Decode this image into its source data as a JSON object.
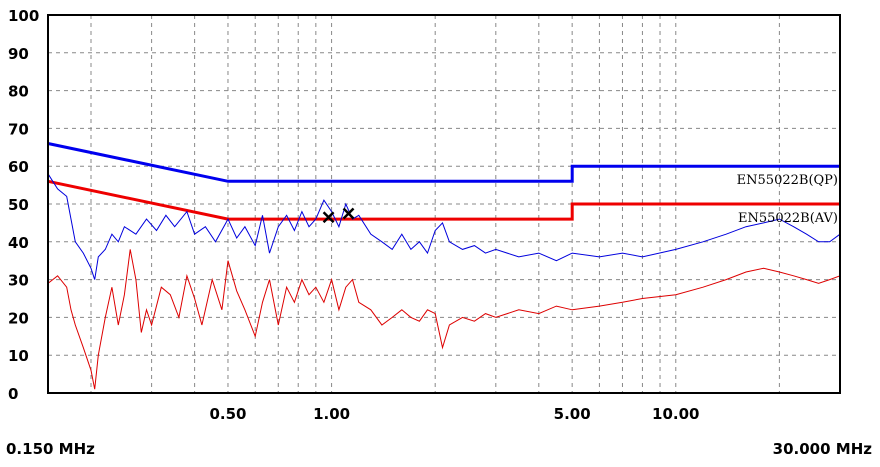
{
  "chart_data": {
    "type": "line",
    "x_scale": "log",
    "xlim": [
      0.15,
      30.0
    ],
    "ylim": [
      0,
      100
    ],
    "grid": true,
    "y_ticks": [
      "100",
      "90",
      "80",
      "70",
      "60",
      "50",
      "40",
      "30",
      "20",
      "10",
      "0"
    ],
    "x_ticks": [
      {
        "value": 0.5,
        "label": "0.50"
      },
      {
        "value": 1.0,
        "label": "1.00"
      },
      {
        "value": 5.0,
        "label": "5.00"
      },
      {
        "value": 10.0,
        "label": "10.00"
      }
    ],
    "x_min_label": "0.150 MHz",
    "x_max_label": "30.000 MHz",
    "limits": [
      {
        "name": "EN55022B(QP)",
        "color": "#0000ee",
        "points": [
          [
            0.15,
            66
          ],
          [
            0.5,
            56
          ],
          [
            5.0,
            56
          ],
          [
            5.0,
            60
          ],
          [
            30.0,
            60
          ]
        ]
      },
      {
        "name": "EN55022B(AV)",
        "color": "#ee0000",
        "points": [
          [
            0.15,
            56
          ],
          [
            0.5,
            46
          ],
          [
            5.0,
            46
          ],
          [
            5.0,
            50
          ],
          [
            30.0,
            50
          ]
        ]
      }
    ],
    "series": [
      {
        "color": "#0000dd",
        "points": [
          [
            0.15,
            58
          ],
          [
            0.16,
            54
          ],
          [
            0.17,
            52
          ],
          [
            0.175,
            46
          ],
          [
            0.18,
            40
          ],
          [
            0.19,
            37
          ],
          [
            0.2,
            33
          ],
          [
            0.205,
            30
          ],
          [
            0.21,
            36
          ],
          [
            0.22,
            38
          ],
          [
            0.23,
            42
          ],
          [
            0.24,
            40
          ],
          [
            0.25,
            44
          ],
          [
            0.27,
            42
          ],
          [
            0.29,
            46
          ],
          [
            0.31,
            43
          ],
          [
            0.33,
            47
          ],
          [
            0.35,
            44
          ],
          [
            0.38,
            48
          ],
          [
            0.4,
            42
          ],
          [
            0.43,
            44
          ],
          [
            0.46,
            40
          ],
          [
            0.5,
            46
          ],
          [
            0.53,
            41
          ],
          [
            0.56,
            44
          ],
          [
            0.6,
            39
          ],
          [
            0.63,
            47
          ],
          [
            0.66,
            37
          ],
          [
            0.7,
            44
          ],
          [
            0.74,
            47
          ],
          [
            0.78,
            43
          ],
          [
            0.82,
            48
          ],
          [
            0.86,
            44
          ],
          [
            0.9,
            46
          ],
          [
            0.95,
            51
          ],
          [
            1.0,
            48
          ],
          [
            1.05,
            44
          ],
          [
            1.1,
            50
          ],
          [
            1.15,
            46
          ],
          [
            1.2,
            47
          ],
          [
            1.3,
            42
          ],
          [
            1.4,
            40
          ],
          [
            1.5,
            38
          ],
          [
            1.6,
            42
          ],
          [
            1.7,
            38
          ],
          [
            1.8,
            40
          ],
          [
            1.9,
            37
          ],
          [
            2.0,
            43
          ],
          [
            2.1,
            45
          ],
          [
            2.2,
            40
          ],
          [
            2.4,
            38
          ],
          [
            2.6,
            39
          ],
          [
            2.8,
            37
          ],
          [
            3.0,
            38
          ],
          [
            3.5,
            36
          ],
          [
            4.0,
            37
          ],
          [
            4.5,
            35
          ],
          [
            5.0,
            37
          ],
          [
            6.0,
            36
          ],
          [
            7.0,
            37
          ],
          [
            8.0,
            36
          ],
          [
            10.0,
            38
          ],
          [
            12.0,
            40
          ],
          [
            14.0,
            42
          ],
          [
            16.0,
            44
          ],
          [
            18.0,
            45
          ],
          [
            20.0,
            46
          ],
          [
            22.0,
            44
          ],
          [
            24.0,
            42
          ],
          [
            26.0,
            40
          ],
          [
            28.0,
            40
          ],
          [
            30.0,
            42
          ]
        ]
      },
      {
        "color": "#dd0000",
        "points": [
          [
            0.15,
            29
          ],
          [
            0.16,
            31
          ],
          [
            0.17,
            28
          ],
          [
            0.175,
            22
          ],
          [
            0.18,
            18
          ],
          [
            0.19,
            12
          ],
          [
            0.2,
            6
          ],
          [
            0.205,
            1
          ],
          [
            0.21,
            10
          ],
          [
            0.22,
            20
          ],
          [
            0.23,
            28
          ],
          [
            0.24,
            18
          ],
          [
            0.25,
            26
          ],
          [
            0.26,
            38
          ],
          [
            0.27,
            30
          ],
          [
            0.28,
            16
          ],
          [
            0.29,
            22
          ],
          [
            0.3,
            18
          ],
          [
            0.32,
            28
          ],
          [
            0.34,
            26
          ],
          [
            0.36,
            20
          ],
          [
            0.38,
            31
          ],
          [
            0.4,
            25
          ],
          [
            0.42,
            18
          ],
          [
            0.45,
            30
          ],
          [
            0.48,
            22
          ],
          [
            0.5,
            35
          ],
          [
            0.53,
            27
          ],
          [
            0.56,
            22
          ],
          [
            0.6,
            15
          ],
          [
            0.63,
            24
          ],
          [
            0.66,
            30
          ],
          [
            0.7,
            18
          ],
          [
            0.74,
            28
          ],
          [
            0.78,
            24
          ],
          [
            0.82,
            30
          ],
          [
            0.86,
            26
          ],
          [
            0.9,
            28
          ],
          [
            0.95,
            24
          ],
          [
            1.0,
            30
          ],
          [
            1.05,
            22
          ],
          [
            1.1,
            28
          ],
          [
            1.15,
            30
          ],
          [
            1.2,
            24
          ],
          [
            1.3,
            22
          ],
          [
            1.4,
            18
          ],
          [
            1.5,
            20
          ],
          [
            1.6,
            22
          ],
          [
            1.7,
            20
          ],
          [
            1.8,
            19
          ],
          [
            1.9,
            22
          ],
          [
            2.0,
            21
          ],
          [
            2.1,
            12
          ],
          [
            2.2,
            18
          ],
          [
            2.4,
            20
          ],
          [
            2.6,
            19
          ],
          [
            2.8,
            21
          ],
          [
            3.0,
            20
          ],
          [
            3.5,
            22
          ],
          [
            4.0,
            21
          ],
          [
            4.5,
            23
          ],
          [
            5.0,
            22
          ],
          [
            6.0,
            23
          ],
          [
            7.0,
            24
          ],
          [
            8.0,
            25
          ],
          [
            10.0,
            26
          ],
          [
            12.0,
            28
          ],
          [
            14.0,
            30
          ],
          [
            16.0,
            32
          ],
          [
            18.0,
            33
          ],
          [
            20.0,
            32
          ],
          [
            22.0,
            31
          ],
          [
            24.0,
            30
          ],
          [
            26.0,
            29
          ],
          [
            28.0,
            30
          ],
          [
            30.0,
            31
          ]
        ]
      }
    ],
    "markers": [
      {
        "x": 0.98,
        "y": 46.5
      },
      {
        "x": 1.12,
        "y": 47.5
      }
    ]
  }
}
